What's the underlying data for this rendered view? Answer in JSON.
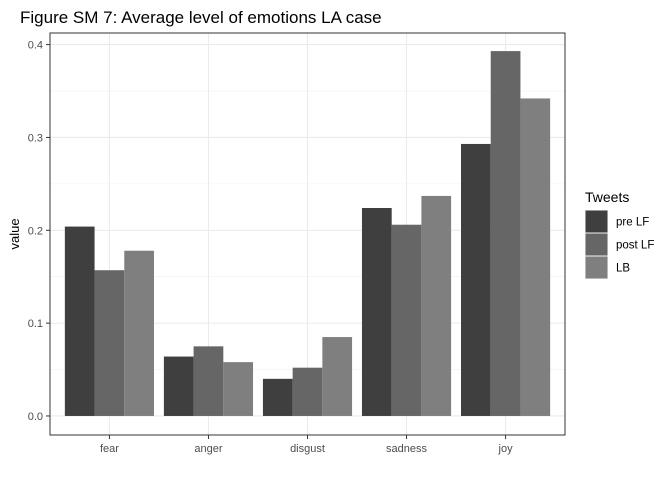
{
  "chart_data": {
    "type": "bar",
    "title": "Figure SM 7: Average level of emotions LA case",
    "xlabel": "",
    "ylabel": "value",
    "categories": [
      "fear",
      "anger",
      "disgust",
      "sadness",
      "joy"
    ],
    "series": [
      {
        "name": "pre LF",
        "values": [
          0.204,
          0.064,
          0.04,
          0.224,
          0.293
        ],
        "color": "#3f3f3f"
      },
      {
        "name": "post LF",
        "values": [
          0.157,
          0.075,
          0.052,
          0.206,
          0.393
        ],
        "color": "#666666"
      },
      {
        "name": "LB",
        "values": [
          0.178,
          0.058,
          0.085,
          0.237,
          0.342
        ],
        "color": "#7f7f7f"
      }
    ],
    "ylim": [
      -0.0205,
      0.4125
    ],
    "yticks": [
      0.0,
      0.1,
      0.2,
      0.3,
      0.4
    ],
    "ytick_labels": [
      "0.0",
      "0.1",
      "0.2",
      "0.3",
      "0.4"
    ],
    "grid": true,
    "legend": {
      "title": "Tweets",
      "position": "right"
    }
  }
}
